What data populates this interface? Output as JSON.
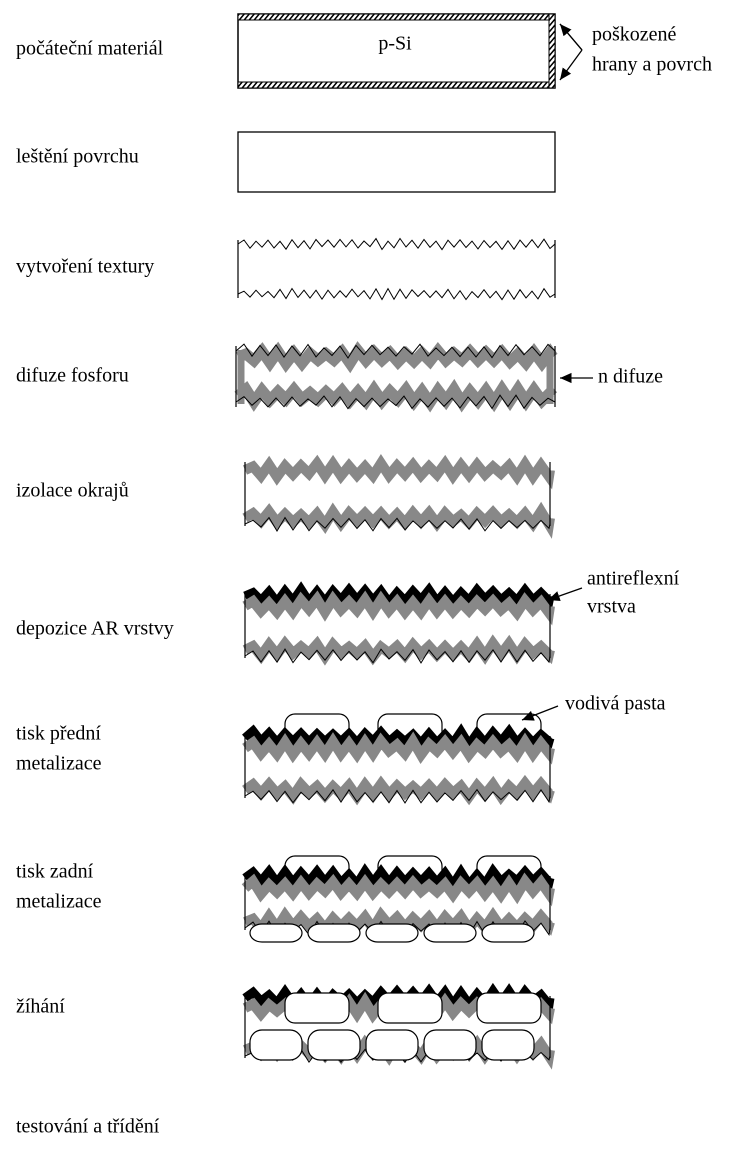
{
  "title": null,
  "steps": [
    {
      "lines": [
        "počáteční materiál"
      ],
      "inner": "p-Si"
    },
    {
      "lines": [
        "leštění povrchu"
      ]
    },
    {
      "lines": [
        "vytvoření textury"
      ]
    },
    {
      "lines": [
        "difuze fosforu"
      ]
    },
    {
      "lines": [
        "izolace okrajů"
      ]
    },
    {
      "lines": [
        "depozice AR vrstvy"
      ]
    },
    {
      "lines": [
        "tisk přední",
        "metalizace"
      ]
    },
    {
      "lines": [
        "tisk zadní",
        "metalizace"
      ]
    },
    {
      "lines": [
        "žíhání"
      ]
    },
    {
      "lines": [
        "testování a třídění"
      ]
    }
  ],
  "annotations": [
    {
      "lines": [
        "poškozené",
        "hrany a povrch"
      ]
    },
    {
      "lines": [
        "n difuze"
      ]
    },
    {
      "lines": [
        "antireflexní",
        "vrstva"
      ]
    },
    {
      "lines": [
        "vodivá pasta"
      ]
    }
  ]
}
